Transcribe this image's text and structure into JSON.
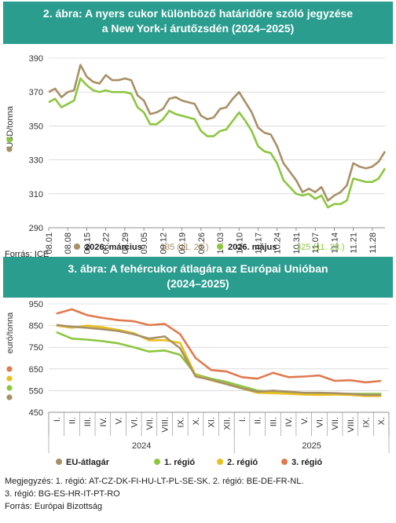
{
  "chart_data": [
    {
      "type": "line",
      "title_line1": "2. ábra: A nyers cukor különböző határidőre szóló jegyzése",
      "title_line2": "a New York-i árutőzsdén (2024–2025)",
      "ylabel": "USD/tonna",
      "ylim": [
        290,
        390
      ],
      "yticks": [
        290,
        310,
        330,
        350,
        370,
        390
      ],
      "x_labels": [
        "08.01",
        "08.08",
        "08.15",
        "08.22",
        "08.29",
        "09.05",
        "09.12",
        "09.19",
        "09.26",
        "10.03",
        "10.10",
        "10.17",
        "10.24",
        "10.31",
        "11.07",
        "11.14",
        "11.21",
        "11.28"
      ],
      "series": [
        {
          "name": "2026. március",
          "legend_value": "335 (11. 28.)",
          "color": "#a89066",
          "values": [
            370,
            372,
            367,
            370,
            371,
            386,
            379,
            376,
            375,
            380,
            377,
            377,
            378,
            377,
            368,
            365,
            357,
            358,
            360,
            366,
            367,
            365,
            364,
            363,
            356,
            354,
            355,
            360,
            361,
            366,
            370,
            364,
            358,
            349,
            346,
            345,
            338,
            328,
            323,
            318,
            311,
            313,
            311,
            314,
            306,
            309,
            311,
            315,
            328,
            326,
            325,
            326,
            329,
            335
          ]
        },
        {
          "name": "2026. május",
          "legend_value": "325 (11. 28.)",
          "color": "#8cc63f",
          "values": [
            364,
            366,
            361,
            363,
            365,
            378,
            374,
            371,
            370,
            371,
            370,
            370,
            370,
            369,
            361,
            358,
            351,
            351,
            354,
            359,
            357,
            356,
            355,
            354,
            347,
            344,
            344,
            347,
            348,
            353,
            358,
            353,
            347,
            338,
            335,
            334,
            328,
            318,
            314,
            310,
            309,
            310,
            307,
            309,
            302,
            304,
            304,
            306,
            319,
            318,
            317,
            317,
            319,
            325
          ]
        }
      ],
      "x_interval_points": 3
    },
    {
      "type": "line",
      "title_line1": "3. ábra: A fehércukor átlagára az Európai Unióban",
      "title_line2": "(2024–2025)",
      "ylabel": "euró/tonna",
      "ylim": [
        450,
        950
      ],
      "yticks": [
        450,
        550,
        650,
        750,
        850,
        950
      ],
      "categories": [
        "I.",
        "II.",
        "III.",
        "IV.",
        "V.",
        "VI.",
        "VII.",
        "VIII.",
        "IX.",
        "X.",
        "XI.",
        "XII.",
        "I.",
        "II.",
        "III.",
        "IV.",
        "V.",
        "VI.",
        "VII.",
        "VIII.",
        "IX.",
        "X."
      ],
      "year_groups": [
        {
          "label": "2024",
          "from": 0,
          "to": 11
        },
        {
          "label": "2025",
          "from": 12,
          "to": 21
        }
      ],
      "series": [
        {
          "name": "EU-átlagár",
          "color": "#a89066",
          "values": [
            853,
            845,
            840,
            833,
            825,
            810,
            790,
            800,
            745,
            615,
            600,
            580,
            560,
            545,
            550,
            545,
            540,
            540,
            538,
            535,
            530,
            530
          ]
        },
        {
          "name": "1. régió",
          "color": "#8cc63f",
          "values": [
            820,
            790,
            785,
            778,
            768,
            750,
            730,
            735,
            715,
            625,
            605,
            590,
            570,
            550,
            545,
            540,
            538,
            538,
            535,
            535,
            535,
            535
          ]
        },
        {
          "name": "2. régió",
          "color": "#e8c020",
          "values": [
            850,
            840,
            850,
            842,
            830,
            815,
            782,
            783,
            770,
            620,
            598,
            580,
            560,
            540,
            538,
            535,
            532,
            530,
            532,
            530,
            525,
            525
          ]
        },
        {
          "name": "3. régió",
          "color": "#e07a50",
          "values": [
            905,
            925,
            898,
            885,
            875,
            870,
            852,
            858,
            810,
            700,
            645,
            638,
            612,
            605,
            632,
            612,
            615,
            620,
            595,
            598,
            588,
            595
          ]
        }
      ]
    }
  ],
  "source1": "Forrás: ICE",
  "note_line1": "Megjegyzés: 1. régió: AT-CZ-DK-FI-HU-LT-PL-SE-SK. 2. régió: BE-DE-FR-NL.",
  "note_line2": "3. régió: BG-ES-HR-IT-PT-RO",
  "source2": "Forrás: Európai Bizottság"
}
